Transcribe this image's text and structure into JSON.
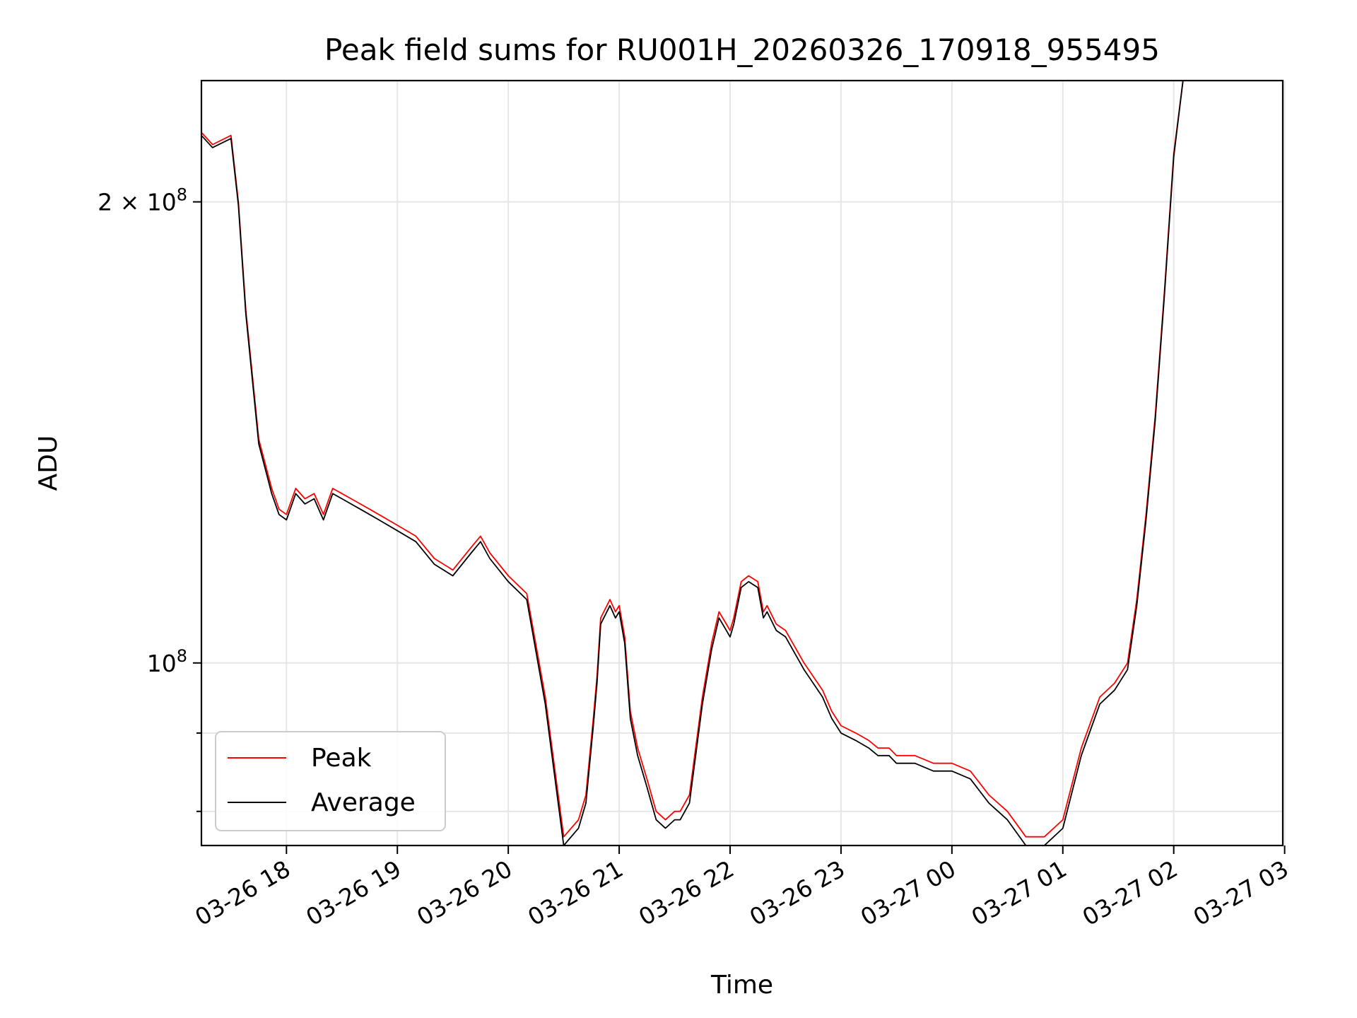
{
  "chart_data": {
    "type": "line",
    "title": "Peak field sums for RU001H_20260326_170918_955495",
    "xlabel": "Time",
    "ylabel": "ADU",
    "y_scale": "log",
    "xlim": [
      "03-26 17:14",
      "03-27 02:59"
    ],
    "ylim": [
      76000000,
      240000000
    ],
    "grid": true,
    "legend_position": "lower-left",
    "x_ticks": [
      {
        "label": "03-26 18",
        "value": "03-26 18:00"
      },
      {
        "label": "03-26 19",
        "value": "03-26 19:00"
      },
      {
        "label": "03-26 20",
        "value": "03-26 20:00"
      },
      {
        "label": "03-26 21",
        "value": "03-26 21:00"
      },
      {
        "label": "03-26 22",
        "value": "03-26 22:00"
      },
      {
        "label": "03-26 23",
        "value": "03-26 23:00"
      },
      {
        "label": "03-27 00",
        "value": "03-27 00:00"
      },
      {
        "label": "03-27 01",
        "value": "03-27 01:00"
      },
      {
        "label": "03-27 02",
        "value": "03-27 02:00"
      },
      {
        "label": "03-27 03",
        "value": "03-27 03:00"
      }
    ],
    "y_ticks": [
      {
        "label_base": "10",
        "label_exp": "8",
        "value": 100000000
      },
      {
        "label_base": "2 × 10",
        "label_exp": "8",
        "value": 200000000
      }
    ],
    "x": [
      "03-26 17:14",
      "03-26 17:20",
      "03-26 17:30",
      "03-26 17:34",
      "03-26 17:38",
      "03-26 17:45",
      "03-26 17:52",
      "03-26 17:54",
      "03-26 17:56",
      "03-26 18:00",
      "03-26 18:05",
      "03-26 18:10",
      "03-26 18:15",
      "03-26 18:20",
      "03-26 18:25",
      "03-26 18:30",
      "03-26 18:35",
      "03-26 18:40",
      "03-26 18:45",
      "03-26 18:50",
      "03-26 19:00",
      "03-26 19:10",
      "03-26 19:20",
      "03-26 19:30",
      "03-26 19:40",
      "03-26 19:45",
      "03-26 19:50",
      "03-26 20:00",
      "03-26 20:10",
      "03-26 20:20",
      "03-26 20:30",
      "03-26 20:38",
      "03-26 20:42",
      "03-26 20:46",
      "03-26 20:48",
      "03-26 20:50",
      "03-26 20:55",
      "03-26 20:58",
      "03-26 21:00",
      "03-26 21:03",
      "03-26 21:06",
      "03-26 21:10",
      "03-26 21:15",
      "03-26 21:20",
      "03-26 21:25",
      "03-26 21:30",
      "03-26 21:33",
      "03-26 21:38",
      "03-26 21:45",
      "03-26 21:50",
      "03-26 21:54",
      "03-26 21:58",
      "03-26 22:00",
      "03-26 22:02",
      "03-26 22:06",
      "03-26 22:10",
      "03-26 22:15",
      "03-26 22:18",
      "03-26 22:20",
      "03-26 22:25",
      "03-26 22:30",
      "03-26 22:40",
      "03-26 22:50",
      "03-26 22:55",
      "03-26 23:00",
      "03-26 23:08",
      "03-26 23:15",
      "03-26 23:20",
      "03-26 23:26",
      "03-26 23:30",
      "03-26 23:40",
      "03-26 23:50",
      "03-27 00:00",
      "03-27 00:10",
      "03-27 00:20",
      "03-27 00:30",
      "03-27 00:40",
      "03-27 00:50",
      "03-27 01:00",
      "03-27 01:10",
      "03-27 01:20",
      "03-27 01:28",
      "03-27 01:35",
      "03-27 01:40",
      "03-27 01:45",
      "03-27 01:50",
      "03-27 01:55",
      "03-27 02:00",
      "03-27 02:05",
      "03-27 02:10",
      "03-27 02:15",
      "03-27 02:20",
      "03-27 02:25",
      "03-27 02:30",
      "03-27 02:35",
      "03-27 02:40",
      "03-27 02:44"
    ],
    "series": [
      {
        "name": "Peak",
        "color": "#ff0000",
        "values": [
          222000000,
          218000000,
          221000000,
          200000000,
          170000000,
          140000000,
          130000000,
          128000000,
          126000000,
          125000000,
          130000000,
          128000000,
          129000000,
          125000000,
          130000000,
          129000000,
          128000000,
          127000000,
          126000000,
          125000000,
          123000000,
          121000000,
          117000000,
          115000000,
          119000000,
          121000000,
          118000000,
          114000000,
          111000000,
          95000000,
          77000000,
          79000000,
          82000000,
          92000000,
          98000000,
          107000000,
          110000000,
          108000000,
          109000000,
          104000000,
          93000000,
          88000000,
          84000000,
          80000000,
          79000000,
          80000000,
          80000000,
          82000000,
          95000000,
          103000000,
          108000000,
          106000000,
          105000000,
          107000000,
          113000000,
          114000000,
          113000000,
          108000000,
          109000000,
          106000000,
          105000000,
          100000000,
          96000000,
          93000000,
          91000000,
          90000000,
          89000000,
          88000000,
          88000000,
          87000000,
          87000000,
          86000000,
          86000000,
          85000000,
          82000000,
          80000000,
          77000000,
          77000000,
          79000000,
          88000000,
          95000000,
          97000000,
          100000000,
          110000000,
          125000000,
          145000000,
          175000000,
          215000000,
          240000000,
          240000000,
          240000000,
          240000000,
          240000000,
          240000000,
          240000000,
          240000000,
          240000000
        ]
      },
      {
        "name": "Average",
        "color": "#000000",
        "values": [
          221000000,
          217000000,
          220000000,
          199000000,
          169000000,
          139000000,
          129000000,
          127000000,
          125000000,
          124000000,
          129000000,
          127000000,
          128000000,
          124000000,
          129000000,
          128000000,
          127000000,
          126000000,
          125000000,
          124000000,
          122000000,
          120000000,
          116000000,
          114000000,
          118000000,
          120000000,
          117000000,
          113000000,
          110000000,
          94000000,
          76000000,
          78000000,
          81000000,
          91000000,
          97000000,
          106000000,
          109000000,
          107000000,
          108000000,
          103000000,
          92000000,
          87000000,
          83000000,
          79000000,
          78000000,
          79000000,
          79000000,
          81000000,
          94000000,
          102000000,
          107000000,
          105000000,
          104000000,
          106000000,
          112000000,
          113000000,
          112000000,
          107000000,
          108000000,
          105000000,
          104000000,
          99000000,
          95000000,
          92000000,
          90000000,
          89000000,
          88000000,
          87000000,
          87000000,
          86000000,
          86000000,
          85000000,
          85000000,
          84000000,
          81000000,
          79000000,
          76000000,
          76000000,
          78000000,
          87000000,
          94000000,
          96000000,
          99000000,
          109000000,
          124000000,
          144000000,
          174000000,
          214000000,
          240000000,
          240000000,
          240000000,
          240000000,
          240000000,
          240000000,
          240000000,
          240000000,
          240000000
        ]
      }
    ]
  }
}
